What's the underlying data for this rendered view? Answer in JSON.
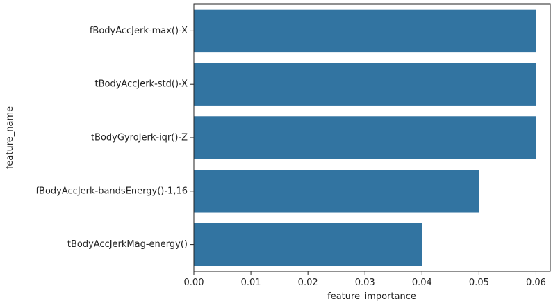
{
  "chart_data": {
    "type": "bar",
    "orientation": "horizontal",
    "xlabel": "feature_importance",
    "ylabel": "feature_name",
    "categories": [
      "fBodyAccJerk-max()-X",
      "tBodyAccJerk-std()-X",
      "tBodyGyroJerk-iqr()-Z",
      "fBodyAccJerk-bandsEnergy()-1,16",
      "tBodyAccJerkMag-energy()"
    ],
    "values": [
      0.06,
      0.06,
      0.06,
      0.05,
      0.04
    ],
    "xlim": [
      0.0,
      0.0625
    ],
    "xticks": [
      0.0,
      0.01,
      0.02,
      0.03,
      0.04,
      0.05,
      0.06
    ],
    "xtick_labels": [
      "0.00",
      "0.01",
      "0.02",
      "0.03",
      "0.04",
      "0.05",
      "0.06"
    ],
    "grid": false,
    "legend": "none",
    "bar_color": "#3274a1"
  }
}
